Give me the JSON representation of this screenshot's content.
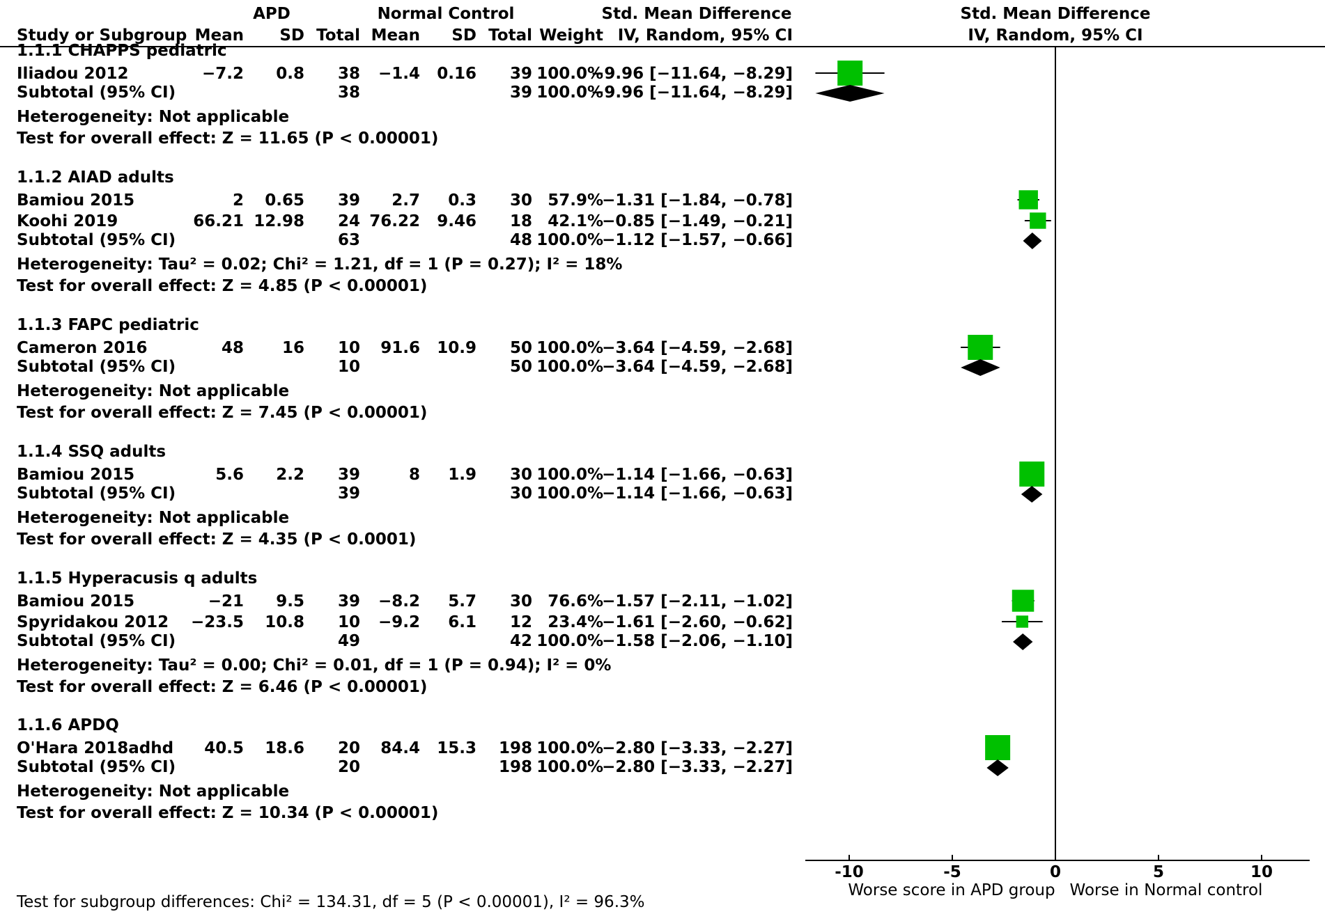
{
  "header": {
    "group1": "APD",
    "group2": "Normal Control",
    "effect_title": "Std. Mean Difference",
    "col_study": "Study or Subgroup",
    "col_mean": "Mean",
    "col_sd": "SD",
    "col_total": "Total",
    "col_weight": "Weight",
    "col_ci": "IV, Random, 95% CI",
    "plot_title": "Std. Mean Difference",
    "plot_subtitle": "IV, Random, 95% CI"
  },
  "chart_data": {
    "type": "forest",
    "xlim": [
      -12,
      12
    ],
    "xticks": [
      "-10",
      "-5",
      "0",
      "5",
      "10"
    ],
    "xtick_values": [
      -10,
      -5,
      0,
      5,
      10
    ],
    "xlabel_left": "Worse score in APD group",
    "xlabel_right": "Worse in Normal control",
    "colors": {
      "study_marker": "#00C000",
      "summary_marker": "#000000"
    },
    "groups": [
      {
        "title": "1.1.1 CHAPPS pediatric",
        "studies": [
          {
            "name": "Iliadou 2012",
            "m1": "−7.2",
            "sd1": "0.8",
            "n1": "38",
            "m2": "−1.4",
            "sd2": "0.16",
            "n2": "39",
            "weight": "100.0%",
            "ci_text": "−9.96 [−11.64, −8.29]",
            "est": -9.96,
            "lo": -11.64,
            "hi": -8.29,
            "w": 100.0
          }
        ],
        "subtotal": {
          "label": "Subtotal (95% CI)",
          "n1": "38",
          "n2": "39",
          "weight": "100.0%",
          "ci_text": "−9.96 [−11.64, −8.29]",
          "est": -9.96,
          "lo": -11.64,
          "hi": -8.29
        },
        "heterogeneity": "Heterogeneity: Not applicable",
        "overall": "Test for overall effect: Z = 11.65 (P < 0.00001)"
      },
      {
        "title": "1.1.2 AIAD adults",
        "studies": [
          {
            "name": "Bamiou 2015",
            "m1": "2",
            "sd1": "0.65",
            "n1": "39",
            "m2": "2.7",
            "sd2": "0.3",
            "n2": "30",
            "weight": "57.9%",
            "ci_text": "−1.31 [−1.84, −0.78]",
            "est": -1.31,
            "lo": -1.84,
            "hi": -0.78,
            "w": 57.9
          },
          {
            "name": "Koohi 2019",
            "m1": "66.21",
            "sd1": "12.98",
            "n1": "24",
            "m2": "76.22",
            "sd2": "9.46",
            "n2": "18",
            "weight": "42.1%",
            "ci_text": "−0.85 [−1.49, −0.21]",
            "est": -0.85,
            "lo": -1.49,
            "hi": -0.21,
            "w": 42.1
          }
        ],
        "subtotal": {
          "label": "Subtotal (95% CI)",
          "n1": "63",
          "n2": "48",
          "weight": "100.0%",
          "ci_text": "−1.12 [−1.57, −0.66]",
          "est": -1.12,
          "lo": -1.57,
          "hi": -0.66
        },
        "heterogeneity": "Heterogeneity: Tau² = 0.02; Chi² = 1.21, df = 1 (P = 0.27); I² = 18%",
        "overall": "Test for overall effect: Z = 4.85 (P < 0.00001)"
      },
      {
        "title": "1.1.3 FAPC pediatric",
        "studies": [
          {
            "name": "Cameron 2016",
            "m1": "48",
            "sd1": "16",
            "n1": "10",
            "m2": "91.6",
            "sd2": "10.9",
            "n2": "50",
            "weight": "100.0%",
            "ci_text": "−3.64 [−4.59, −2.68]",
            "est": -3.64,
            "lo": -4.59,
            "hi": -2.68,
            "w": 100.0
          }
        ],
        "subtotal": {
          "label": "Subtotal (95% CI)",
          "n1": "10",
          "n2": "50",
          "weight": "100.0%",
          "ci_text": "−3.64 [−4.59, −2.68]",
          "est": -3.64,
          "lo": -4.59,
          "hi": -2.68
        },
        "heterogeneity": "Heterogeneity: Not applicable",
        "overall": "Test for overall effect: Z = 7.45 (P < 0.00001)"
      },
      {
        "title": "1.1.4 SSQ adults",
        "studies": [
          {
            "name": "Bamiou 2015",
            "m1": "5.6",
            "sd1": "2.2",
            "n1": "39",
            "m2": "8",
            "sd2": "1.9",
            "n2": "30",
            "weight": "100.0%",
            "ci_text": "−1.14 [−1.66, −0.63]",
            "est": -1.14,
            "lo": -1.66,
            "hi": -0.63,
            "w": 100.0
          }
        ],
        "subtotal": {
          "label": "Subtotal (95% CI)",
          "n1": "39",
          "n2": "30",
          "weight": "100.0%",
          "ci_text": "−1.14 [−1.66, −0.63]",
          "est": -1.14,
          "lo": -1.66,
          "hi": -0.63
        },
        "heterogeneity": "Heterogeneity: Not applicable",
        "overall": "Test for overall effect: Z = 4.35 (P < 0.0001)"
      },
      {
        "title": "1.1.5 Hyperacusis q adults",
        "studies": [
          {
            "name": "Bamiou 2015",
            "m1": "−21",
            "sd1": "9.5",
            "n1": "39",
            "m2": "−8.2",
            "sd2": "5.7",
            "n2": "30",
            "weight": "76.6%",
            "ci_text": "−1.57 [−2.11, −1.02]",
            "est": -1.57,
            "lo": -2.11,
            "hi": -1.02,
            "w": 76.6
          },
          {
            "name": "Spyridakou 2012",
            "m1": "−23.5",
            "sd1": "10.8",
            "n1": "10",
            "m2": "−9.2",
            "sd2": "6.1",
            "n2": "12",
            "weight": "23.4%",
            "ci_text": "−1.61 [−2.60, −0.62]",
            "est": -1.61,
            "lo": -2.6,
            "hi": -0.62,
            "w": 23.4
          }
        ],
        "subtotal": {
          "label": "Subtotal (95% CI)",
          "n1": "49",
          "n2": "42",
          "weight": "100.0%",
          "ci_text": "−1.58 [−2.06, −1.10]",
          "est": -1.58,
          "lo": -2.06,
          "hi": -1.1
        },
        "heterogeneity": "Heterogeneity: Tau² = 0.00; Chi² = 0.01, df = 1 (P = 0.94); I² = 0%",
        "overall": "Test for overall effect: Z = 6.46 (P < 0.00001)"
      },
      {
        "title": "1.1.6 APDQ",
        "studies": [
          {
            "name": "O'Hara 2018adhd",
            "m1": "40.5",
            "sd1": "18.6",
            "n1": "20",
            "m2": "84.4",
            "sd2": "15.3",
            "n2": "198",
            "weight": "100.0%",
            "ci_text": "−2.80 [−3.33, −2.27]",
            "est": -2.8,
            "lo": -3.33,
            "hi": -2.27,
            "w": 100.0
          }
        ],
        "subtotal": {
          "label": "Subtotal (95% CI)",
          "n1": "20",
          "n2": "198",
          "weight": "100.0%",
          "ci_text": "−2.80 [−3.33, −2.27]",
          "est": -2.8,
          "lo": -3.33,
          "hi": -2.27
        },
        "heterogeneity": "Heterogeneity: Not applicable",
        "overall": "Test for overall effect: Z = 10.34 (P < 0.00001)"
      }
    ],
    "subgroup_test": "Test for subgroup differences: Chi² = 134.31, df = 5 (P < 0.00001), I² = 96.3%"
  }
}
